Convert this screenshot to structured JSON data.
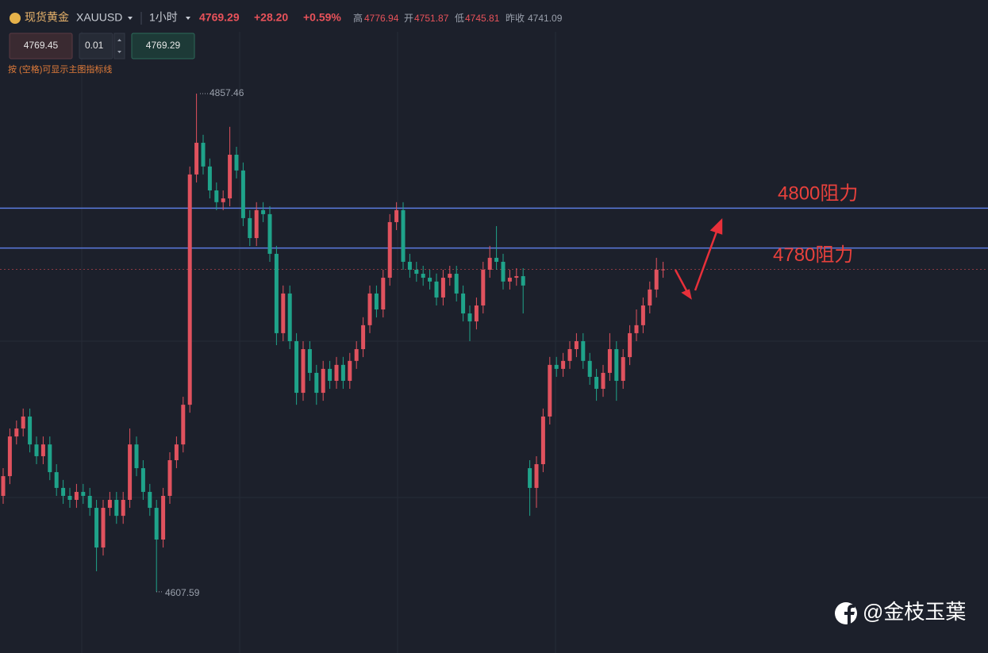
{
  "header": {
    "name": "现货黄金",
    "symbol": "XAUUSD",
    "timeframe": "1小时",
    "price": "4769.29",
    "change": "+28.20",
    "change_pct": "+0.59%",
    "high_label": "高",
    "high": "4776.94",
    "open_label": "开",
    "open": "4751.87",
    "low_label": "低",
    "low": "4745.81",
    "prev_close_label": "昨收",
    "prev_close": "4741.09"
  },
  "order": {
    "sell_price": "4769.45",
    "lot": "0.01",
    "buy_price": "4769.29"
  },
  "hint": "按 (空格)可显示主图指标线",
  "watermark": "@金枝玉葉",
  "chart_data": {
    "type": "candlestick",
    "up_color": "#e0525e",
    "down_color": "#1fa38a",
    "level_color": "#5b7be0",
    "label_color": "#e8413c",
    "ylim": [
      4576.9,
      4904.4
    ],
    "max_label": 4857.46,
    "min_label": 4607.59,
    "current_price": 4769.29,
    "levels": [
      {
        "value": 4800,
        "label": "4800阻力"
      },
      {
        "value": 4780,
        "label": "4780阻力"
      }
    ],
    "open": [
      4655.7,
      4665.6,
      4685.5,
      4689.5,
      4695.5,
      4681.5,
      4675.6,
      4681.5,
      4667.6,
      4659.7,
      4655.7,
      4653.7,
      4657.7,
      4655.7,
      4649.7,
      4629.8,
      4649.7,
      4653.7,
      4645.7,
      4653.7,
      4681.5,
      4669.6,
      4657.7,
      4649.7,
      4633.8,
      4655.7,
      4673.6,
      4681.5,
      4701.4,
      4816.9,
      4832.8,
      4820.9,
      4808.9,
      4803.0,
      4804.9,
      4826.8,
      4818.9,
      4795.0,
      4785.0,
      4799.0,
      4797.0,
      4777.1,
      4737.3,
      4757.2,
      4733.3,
      4707.4,
      4729.3,
      4717.4,
      4707.4,
      4719.4,
      4713.4,
      4721.4,
      4713.4,
      4723.4,
      4729.3,
      4741.3,
      4757.2,
      4749.2,
      4765.1,
      4793.0,
      4799.0,
      4773.1,
      4769.1,
      4767.1,
      4765.1,
      4763.2,
      4755.2,
      4765.1,
      4767.1,
      4757.2,
      4747.2,
      4743.2,
      4751.2,
      4769.1,
      4775.1,
      4773.1,
      4763.2,
      4765.1,
      4765.9,
      4669.6,
      4659.7,
      4671.6,
      4695.5,
      4721.4,
      4719.4,
      4723.4,
      4729.3,
      4733.3,
      4723.4,
      4715.4,
      4709.4,
      4717.4,
      4729.3,
      4713.4,
      4725.3,
      4737.3,
      4741.3,
      4751.2,
      4759.2,
      4769.1
    ],
    "high": [
      4669.6,
      4689.5,
      4693.5,
      4699.5,
      4699.5,
      4685.5,
      4685.5,
      4685.5,
      4671.6,
      4663.7,
      4659.7,
      4661.7,
      4661.7,
      4659.7,
      4653.7,
      4653.7,
      4657.7,
      4657.7,
      4657.7,
      4689.5,
      4685.5,
      4673.6,
      4661.7,
      4653.7,
      4659.7,
      4677.6,
      4685.5,
      4705.4,
      4820.9,
      4857.46,
      4836.8,
      4824.9,
      4812.9,
      4808.9,
      4840.8,
      4830.8,
      4822.9,
      4799.0,
      4803.0,
      4803.0,
      4801.0,
      4781.1,
      4761.2,
      4761.2,
      4737.3,
      4733.3,
      4733.3,
      4721.4,
      4723.4,
      4723.4,
      4725.4,
      4725.4,
      4727.4,
      4733.3,
      4745.3,
      4761.2,
      4761.2,
      4769.1,
      4797.0,
      4803.0,
      4803.0,
      4777.1,
      4773.1,
      4771.1,
      4769.1,
      4767.2,
      4769.1,
      4771.1,
      4771.1,
      4761.2,
      4751.2,
      4755.2,
      4773.1,
      4781.1,
      4791.0,
      4777.1,
      4769.1,
      4769.9,
      4769.9,
      4673.6,
      4675.6,
      4699.5,
      4725.4,
      4725.4,
      4727.4,
      4733.3,
      4737.3,
      4737.3,
      4727.4,
      4719.4,
      4721.4,
      4737.3,
      4733.3,
      4729.3,
      4741.3,
      4749.2,
      4755.2,
      4763.2,
      4775.1,
      4773.1
    ],
    "low": [
      4651.7,
      4661.6,
      4681.5,
      4685.5,
      4677.5,
      4671.6,
      4671.6,
      4663.6,
      4655.7,
      4651.7,
      4649.7,
      4649.7,
      4651.7,
      4645.7,
      4617.9,
      4625.8,
      4645.7,
      4641.7,
      4641.7,
      4649.7,
      4665.6,
      4653.7,
      4645.7,
      4607.59,
      4629.8,
      4651.7,
      4669.6,
      4677.5,
      4697.4,
      4812.9,
      4816.9,
      4804.9,
      4799.0,
      4799.0,
      4800.9,
      4814.9,
      4791.0,
      4781.0,
      4781.0,
      4793.0,
      4773.1,
      4731.3,
      4733.3,
      4729.3,
      4701.4,
      4703.4,
      4713.4,
      4701.4,
      4703.4,
      4709.4,
      4709.4,
      4709.4,
      4709.4,
      4719.4,
      4725.3,
      4737.3,
      4745.2,
      4745.2,
      4761.1,
      4789.0,
      4769.1,
      4765.1,
      4763.1,
      4761.1,
      4759.2,
      4751.2,
      4751.2,
      4761.1,
      4753.2,
      4743.2,
      4733.3,
      4739.2,
      4747.2,
      4765.1,
      4769.1,
      4759.2,
      4759.2,
      4761.1,
      4747.2,
      4645.7,
      4649.7,
      4667.6,
      4691.5,
      4715.4,
      4715.4,
      4719.4,
      4725.3,
      4719.4,
      4711.4,
      4703.4,
      4705.4,
      4713.4,
      4703.4,
      4709.4,
      4721.3,
      4733.3,
      4737.3,
      4747.2,
      4755.2,
      4765.1
    ],
    "close": [
      4665.6,
      4685.5,
      4689.5,
      4695.5,
      4681.5,
      4675.6,
      4681.5,
      4667.6,
      4659.7,
      4655.7,
      4653.7,
      4657.7,
      4655.7,
      4649.7,
      4629.8,
      4649.7,
      4653.7,
      4645.7,
      4653.7,
      4681.5,
      4669.6,
      4657.7,
      4649.7,
      4633.8,
      4655.7,
      4673.6,
      4681.5,
      4701.4,
      4816.9,
      4832.8,
      4820.9,
      4808.9,
      4803.0,
      4804.9,
      4826.8,
      4818.9,
      4795.0,
      4785.0,
      4799.0,
      4797.0,
      4777.1,
      4737.3,
      4757.2,
      4733.3,
      4707.4,
      4729.3,
      4717.4,
      4707.4,
      4719.4,
      4713.4,
      4721.4,
      4713.4,
      4723.4,
      4729.3,
      4741.3,
      4757.2,
      4749.2,
      4765.1,
      4793.0,
      4799.0,
      4773.1,
      4769.1,
      4767.1,
      4765.1,
      4763.2,
      4755.2,
      4765.1,
      4767.1,
      4757.2,
      4747.2,
      4743.2,
      4751.2,
      4769.1,
      4775.1,
      4773.1,
      4763.2,
      4765.1,
      4765.9,
      4761.2,
      4659.7,
      4671.6,
      4695.5,
      4721.4,
      4719.4,
      4723.4,
      4729.3,
      4733.3,
      4723.4,
      4715.4,
      4709.4,
      4717.4,
      4729.3,
      4713.4,
      4725.3,
      4737.3,
      4741.3,
      4751.2,
      4759.2,
      4769.1,
      4769.29
    ]
  }
}
